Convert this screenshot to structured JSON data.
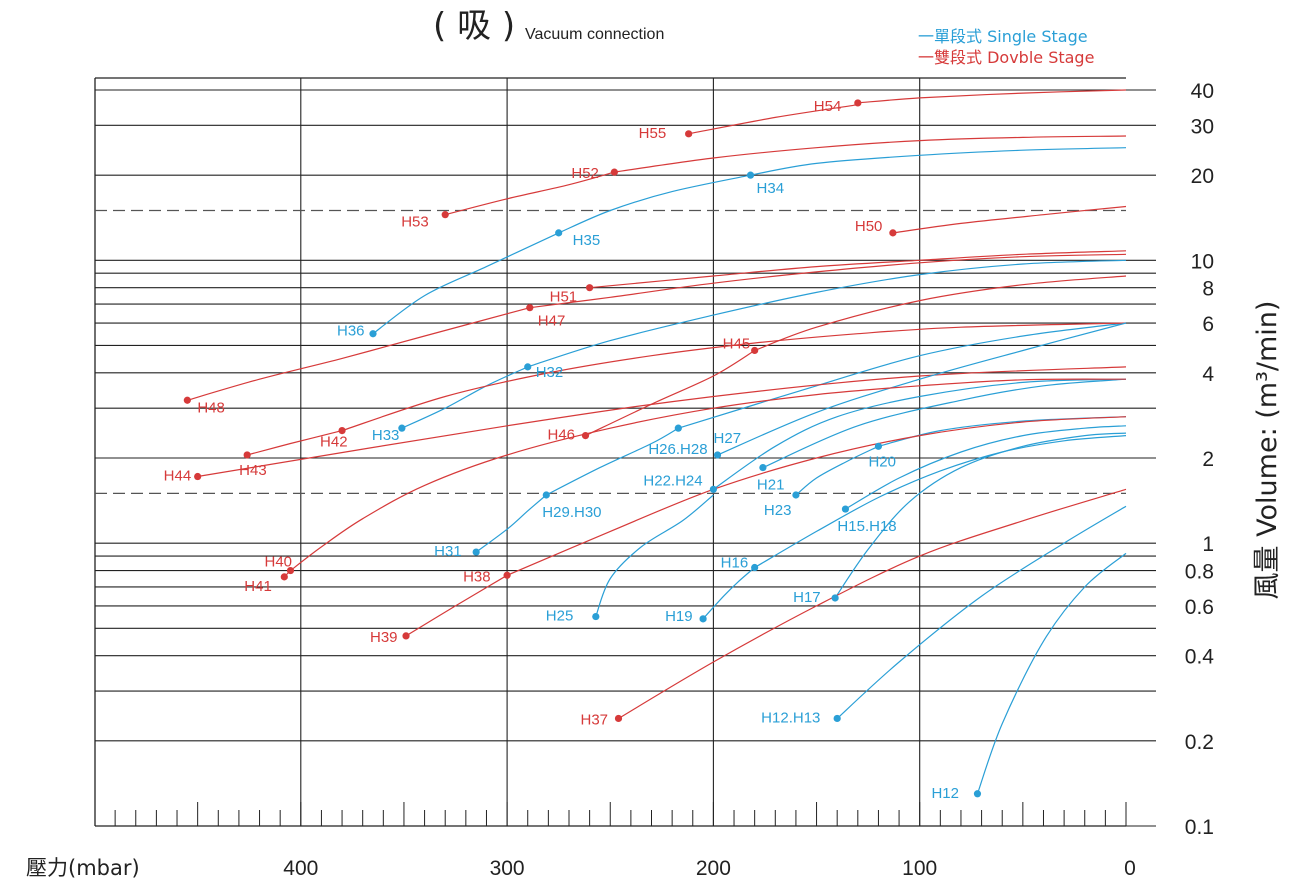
{
  "chart_data": {
    "type": "line",
    "title": "( 吸 )",
    "subtitle": "Vacuum connection",
    "xlabel": "壓力(mbar)",
    "ylabel": "風量 Volume: (m³/min)",
    "xlim": [
      500,
      0
    ],
    "ylim": [
      0.1,
      40
    ],
    "y_scale": "log",
    "x_ticks": [
      400,
      300,
      200,
      100,
      0
    ],
    "x_tick_labels": [
      "400",
      "300",
      "200",
      "100",
      "0"
    ],
    "y_ticks": [
      40,
      30,
      20,
      10,
      8,
      6,
      4,
      2,
      1,
      0.8,
      0.6,
      0.4,
      0.2,
      0.1
    ],
    "y_tick_labels": [
      "40",
      "30",
      "20",
      "10",
      "8",
      "6",
      "4",
      "2",
      "1",
      "0.8",
      "0.6",
      "0.4",
      "0.2",
      "0.1"
    ],
    "grid": true,
    "legend_position": "top-right",
    "colors": {
      "single": "#2a9fd6",
      "double": "#d63a3a"
    },
    "legend": [
      {
        "key": "single",
        "label": "一單段式 Single Stage"
      },
      {
        "key": "double",
        "label": "一雙段式 Dovble Stage"
      }
    ],
    "series": [
      {
        "label": "H54",
        "stage": "double",
        "points": [
          [
            130,
            36
          ],
          [
            100,
            37.5
          ],
          [
            50,
            39
          ],
          [
            0,
            40
          ]
        ]
      },
      {
        "label": "H55",
        "stage": "double",
        "points": [
          [
            212,
            28
          ],
          [
            170,
            32
          ],
          [
            130,
            35.5
          ]
        ]
      },
      {
        "label": "H52",
        "stage": "double",
        "points": [
          [
            248,
            20.5
          ],
          [
            200,
            23
          ],
          [
            150,
            25
          ],
          [
            100,
            26.5
          ],
          [
            50,
            27.2
          ],
          [
            0,
            27.5
          ]
        ]
      },
      {
        "label": "H53",
        "stage": "double",
        "points": [
          [
            330,
            14.5
          ],
          [
            300,
            16.5
          ],
          [
            270,
            18.5
          ],
          [
            248,
            20.5
          ]
        ]
      },
      {
        "label": "H34",
        "stage": "single",
        "points": [
          [
            182,
            20
          ],
          [
            150,
            22
          ],
          [
            100,
            23.5
          ],
          [
            50,
            24.5
          ],
          [
            0,
            25
          ]
        ]
      },
      {
        "label": "H35",
        "stage": "single",
        "points": [
          [
            275,
            12.5
          ],
          [
            250,
            15
          ],
          [
            220,
            17.5
          ],
          [
            182,
            20
          ]
        ]
      },
      {
        "label": "H36",
        "stage": "single",
        "points": [
          [
            365,
            5.5
          ],
          [
            340,
            7.5
          ],
          [
            310,
            9.5
          ],
          [
            275,
            12.5
          ]
        ]
      },
      {
        "label": "H50",
        "stage": "double",
        "points": [
          [
            113,
            12.5
          ],
          [
            80,
            13.5
          ],
          [
            40,
            14.5
          ],
          [
            0,
            15.5
          ]
        ]
      },
      {
        "label": "H51",
        "stage": "double",
        "points": [
          [
            260,
            8
          ],
          [
            200,
            8.8
          ],
          [
            150,
            9.5
          ],
          [
            100,
            10
          ],
          [
            50,
            10.5
          ],
          [
            0,
            10.8
          ]
        ]
      },
      {
        "label": "H47",
        "stage": "double",
        "points": [
          [
            289,
            6.8
          ],
          [
            250,
            7.4
          ],
          [
            200,
            8.3
          ],
          [
            150,
            9.1
          ],
          [
            100,
            9.8
          ],
          [
            50,
            10.3
          ],
          [
            0,
            10.5
          ]
        ]
      },
      {
        "label": "H48",
        "stage": "double",
        "points": [
          [
            455,
            3.2
          ],
          [
            420,
            3.8
          ],
          [
            380,
            4.5
          ],
          [
            340,
            5.4
          ],
          [
            289,
            6.8
          ]
        ]
      },
      {
        "label": "H45",
        "stage": "double",
        "points": [
          [
            180,
            4.8
          ],
          [
            150,
            5.8
          ],
          [
            100,
            7.2
          ],
          [
            50,
            8.2
          ],
          [
            0,
            8.8
          ]
        ]
      },
      {
        "label": "H46",
        "stage": "double",
        "points": [
          [
            262,
            2.4
          ],
          [
            230,
            3.1
          ],
          [
            200,
            3.9
          ],
          [
            180,
            4.8
          ]
        ]
      },
      {
        "label": "H32",
        "stage": "single",
        "points": [
          [
            290,
            4.2
          ],
          [
            250,
            5.2
          ],
          [
            200,
            6.4
          ],
          [
            150,
            7.7
          ],
          [
            100,
            8.9
          ],
          [
            50,
            9.7
          ],
          [
            0,
            10
          ]
        ]
      },
      {
        "label": "H33",
        "stage": "single",
        "points": [
          [
            351,
            2.55
          ],
          [
            330,
            3.0
          ],
          [
            310,
            3.6
          ],
          [
            290,
            4.2
          ]
        ]
      },
      {
        "label": "H26.H28",
        "stage": "single",
        "points": [
          [
            217,
            2.55
          ],
          [
            150,
            3.6
          ],
          [
            100,
            4.6
          ],
          [
            50,
            5.4
          ],
          [
            0,
            6
          ]
        ]
      },
      {
        "label": "H29.H30",
        "stage": "single",
        "points": [
          [
            281,
            1.48
          ],
          [
            255,
            1.85
          ],
          [
            230,
            2.25
          ],
          [
            217,
            2.55
          ]
        ]
      },
      {
        "label": "H31",
        "stage": "single",
        "points": [
          [
            315,
            0.93
          ],
          [
            300,
            1.12
          ],
          [
            290,
            1.3
          ],
          [
            281,
            1.48
          ]
        ]
      },
      {
        "label": "H42",
        "stage": "double",
        "points": [
          [
            380,
            2.5
          ],
          [
            330,
            3.3
          ],
          [
            280,
            4
          ],
          [
            230,
            4.6
          ],
          [
            180,
            5.1
          ],
          [
            130,
            5.5
          ],
          [
            80,
            5.8
          ],
          [
            0,
            6
          ]
        ]
      },
      {
        "label": "H43",
        "stage": "double",
        "points": [
          [
            426,
            2.05
          ],
          [
            405,
            2.25
          ],
          [
            380,
            2.5
          ]
        ]
      },
      {
        "label": "H44",
        "stage": "double",
        "points": [
          [
            450,
            1.72
          ],
          [
            300,
            2.6
          ],
          [
            200,
            3.3
          ],
          [
            100,
            3.9
          ],
          [
            0,
            4.2
          ]
        ]
      },
      {
        "label": "H27",
        "stage": "single",
        "points": [
          [
            198,
            2.05
          ],
          [
            150,
            2.9
          ],
          [
            100,
            3.8
          ],
          [
            50,
            4.8
          ],
          [
            0,
            6
          ]
        ]
      },
      {
        "label": "H21",
        "stage": "single",
        "points": [
          [
            176,
            1.85
          ],
          [
            130,
            2.6
          ],
          [
            80,
            3.2
          ],
          [
            40,
            3.6
          ],
          [
            0,
            3.8
          ]
        ]
      },
      {
        "label": "H22.H24",
        "stage": "single",
        "points": [
          [
            200,
            1.55
          ],
          [
            170,
            2.2
          ],
          [
            140,
            2.8
          ],
          [
            100,
            3.3
          ],
          [
            50,
            3.7
          ],
          [
            0,
            3.8
          ]
        ]
      },
      {
        "label": "H20",
        "stage": "single",
        "points": [
          [
            120,
            2.2
          ],
          [
            90,
            2.5
          ],
          [
            50,
            2.7
          ],
          [
            0,
            2.8
          ]
        ]
      },
      {
        "label": "H23",
        "stage": "single",
        "points": [
          [
            160,
            1.48
          ],
          [
            150,
            1.7
          ],
          [
            135,
            1.95
          ],
          [
            120,
            2.2
          ]
        ]
      },
      {
        "label": "H15.H18",
        "stage": "single",
        "points": [
          [
            136,
            1.32
          ],
          [
            110,
            1.7
          ],
          [
            80,
            2.1
          ],
          [
            50,
            2.4
          ],
          [
            20,
            2.55
          ],
          [
            0,
            2.6
          ]
        ]
      },
      {
        "label": "H40",
        "stage": "double",
        "points": [
          [
            405,
            0.8
          ],
          [
            390,
            0.97
          ],
          [
            370,
            1.22
          ],
          [
            340,
            1.6
          ],
          [
            300,
            2.05
          ],
          [
            250,
            2.55
          ],
          [
            200,
            3
          ],
          [
            150,
            3.35
          ],
          [
            100,
            3.6
          ],
          [
            50,
            3.78
          ],
          [
            0,
            3.8
          ]
        ]
      },
      {
        "label": "H41",
        "stage": "double",
        "points": [
          [
            408,
            0.76
          ],
          [
            405,
            0.8
          ]
        ]
      },
      {
        "label": "H38",
        "stage": "double",
        "points": [
          [
            300,
            0.77
          ],
          [
            250,
            1.1
          ],
          [
            200,
            1.55
          ],
          [
            150,
            2
          ],
          [
            100,
            2.4
          ],
          [
            50,
            2.68
          ],
          [
            0,
            2.8
          ]
        ]
      },
      {
        "label": "H39",
        "stage": "double",
        "points": [
          [
            349,
            0.47
          ],
          [
            325,
            0.6
          ],
          [
            300,
            0.77
          ]
        ]
      },
      {
        "label": "H25",
        "stage": "single",
        "points": [
          [
            257,
            0.55
          ],
          [
            250,
            0.75
          ],
          [
            235,
            0.97
          ],
          [
            215,
            1.2
          ],
          [
            200,
            1.48
          ]
        ]
      },
      {
        "label": "H16",
        "stage": "single",
        "points": [
          [
            180,
            0.82
          ],
          [
            150,
            1.1
          ],
          [
            120,
            1.45
          ],
          [
            90,
            1.8
          ],
          [
            60,
            2.1
          ],
          [
            30,
            2.3
          ],
          [
            0,
            2.4
          ]
        ]
      },
      {
        "label": "H19",
        "stage": "single",
        "points": [
          [
            205,
            0.54
          ],
          [
            195,
            0.65
          ],
          [
            188,
            0.73
          ],
          [
            180,
            0.82
          ]
        ]
      },
      {
        "label": "H17",
        "stage": "single",
        "points": [
          [
            141,
            0.64
          ],
          [
            125,
            0.95
          ],
          [
            105,
            1.4
          ],
          [
            80,
            1.85
          ],
          [
            50,
            2.2
          ],
          [
            20,
            2.4
          ],
          [
            0,
            2.45
          ]
        ]
      },
      {
        "label": "H37",
        "stage": "double",
        "points": [
          [
            246,
            0.24
          ],
          [
            200,
            0.38
          ],
          [
            150,
            0.6
          ],
          [
            100,
            0.9
          ],
          [
            50,
            1.2
          ],
          [
            0,
            1.55
          ]
        ]
      },
      {
        "label": "H12.H13",
        "stage": "single",
        "points": [
          [
            140,
            0.24
          ],
          [
            110,
            0.38
          ],
          [
            70,
            0.65
          ],
          [
            30,
            1
          ],
          [
            0,
            1.35
          ]
        ]
      },
      {
        "label": "H12",
        "stage": "single",
        "points": [
          [
            72,
            0.13
          ],
          [
            60,
            0.23
          ],
          [
            40,
            0.45
          ],
          [
            20,
            0.7
          ],
          [
            0,
            0.92
          ]
        ]
      }
    ]
  }
}
